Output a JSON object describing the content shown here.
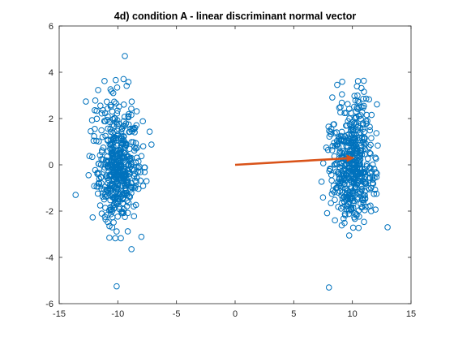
{
  "chart_data": {
    "type": "scatter",
    "title": "4d) condition A - linear discriminant normal vector",
    "xlabel": "",
    "ylabel": "",
    "xlim": [
      -15,
      15
    ],
    "ylim": [
      -6,
      6
    ],
    "xticks": [
      -15,
      -10,
      -5,
      0,
      5,
      10,
      15
    ],
    "yticks": [
      -6,
      -4,
      -2,
      0,
      2,
      4,
      6
    ],
    "grid": false,
    "legend": "none",
    "marker_color": "#0072BD",
    "arrow_color": "#D95319",
    "clusters": [
      {
        "center_x": -10,
        "center_y": 0,
        "sd_x": 0.95,
        "sd_y": 1.3,
        "count": 500
      },
      {
        "center_x": 10,
        "center_y": 0,
        "sd_x": 0.95,
        "sd_y": 1.3,
        "count": 500
      }
    ],
    "notable_points": [
      {
        "x": -9.4,
        "y": 4.7
      },
      {
        "x": -10.1,
        "y": -5.25
      },
      {
        "x": 8.0,
        "y": -5.3
      },
      {
        "x": -13.6,
        "y": -1.3
      },
      {
        "x": 13.0,
        "y": -2.7
      }
    ],
    "normal_vector": {
      "x_start": 0,
      "y_start": 0,
      "x_end": 10.2,
      "y_end": 0.3
    }
  }
}
